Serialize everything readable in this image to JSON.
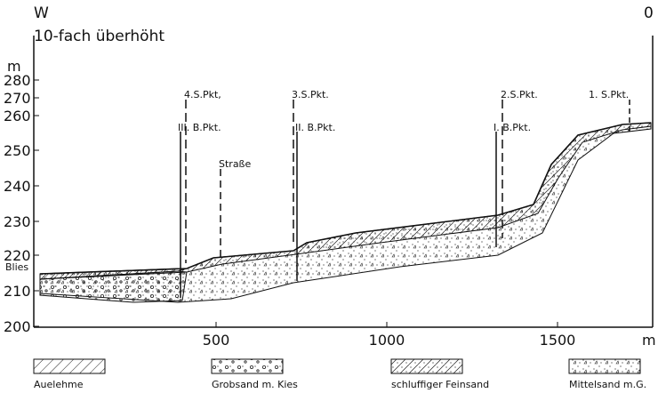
{
  "header": {
    "left": "W",
    "right": "0",
    "note": "10-fach überhöht"
  },
  "axes": {
    "y_unit": "m",
    "y_ticks": [
      "280",
      "270",
      "260",
      "250",
      "240",
      "230",
      "220",
      "210",
      "200"
    ],
    "x_ticks": [
      "500",
      "1000",
      "1500"
    ],
    "x_unit": "m"
  },
  "river": "Blies",
  "points": [
    "4.S.Pkt,",
    "III. B.Pkt.",
    "3.S.Pkt.",
    "II. B.Pkt.",
    "Straße",
    "2.S.Pkt.",
    "I. B.Pkt.",
    "1. S.Pkt."
  ],
  "legend": [
    "Auelehme",
    "Grobsand m. Kies",
    "schluffiger Feinsand",
    "Mittelsand m.G."
  ]
}
